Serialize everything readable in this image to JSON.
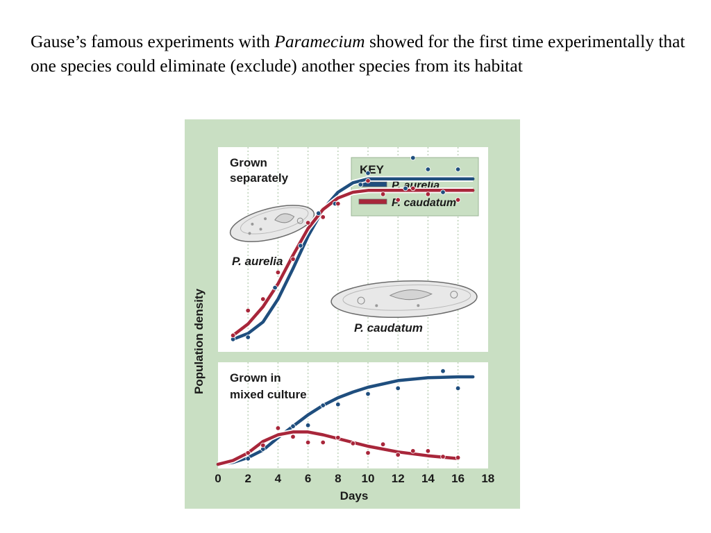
{
  "caption": {
    "before": "Gause’s famous experiments with ",
    "italic": "Paramecium",
    "after": " showed for the first time experimentally that one species could eliminate (exclude) another species from its habitat"
  },
  "colors": {
    "background": "#c9dfc3",
    "panel": "#ffffff",
    "aurelia": "#1f4e7e",
    "caudatum": "#a8263a",
    "key_bg": "#c9dfc3"
  },
  "figure": {
    "ylabel": "Population density",
    "xlabel": "Days",
    "x_ticks": [
      0,
      2,
      4,
      6,
      8,
      10,
      12,
      14,
      16,
      18
    ],
    "key": {
      "title": "KEY",
      "entries": [
        {
          "label": "P. aurelia",
          "series": "aurelia"
        },
        {
          "label": "P. caudatum",
          "series": "caudatum"
        }
      ]
    },
    "illustrations": [
      {
        "label": "P. aurelia",
        "icon": "paramecium-aurelia-icon"
      },
      {
        "label": "P. caudatum",
        "icon": "paramecium-caudatum-icon"
      }
    ]
  },
  "chart_data": [
    {
      "type": "line",
      "title": "Grown separately",
      "xlabel": "Days",
      "ylabel": "Population density",
      "xlim": [
        0,
        18
      ],
      "ylim": [
        0,
        1
      ],
      "series": [
        {
          "name": "P. aurelia",
          "color": "#1f4e7e",
          "curve": {
            "x": [
              1,
              2,
              3,
              4,
              5,
              6,
              7,
              8,
              9,
              10,
              12,
              14,
              16,
              17
            ],
            "y": [
              0.03,
              0.06,
              0.12,
              0.24,
              0.4,
              0.57,
              0.71,
              0.8,
              0.85,
              0.87,
              0.87,
              0.87,
              0.87,
              0.87
            ]
          },
          "points": {
            "x": [
              1,
              2,
              3.8,
              5.5,
              6.7,
              7.8,
              9.5,
              10,
              12.5,
              13,
              14,
              15,
              16
            ],
            "y": [
              0.03,
              0.04,
              0.3,
              0.52,
              0.69,
              0.74,
              0.84,
              0.9,
              0.82,
              0.98,
              0.92,
              0.8,
              0.92
            ]
          }
        },
        {
          "name": "P. caudatum",
          "color": "#a8263a",
          "curve": {
            "x": [
              1,
              2,
              3,
              4,
              5,
              6,
              7,
              8,
              9,
              10,
              12,
              14,
              16,
              17
            ],
            "y": [
              0.05,
              0.11,
              0.2,
              0.32,
              0.47,
              0.61,
              0.71,
              0.77,
              0.8,
              0.81,
              0.81,
              0.81,
              0.81,
              0.81
            ]
          },
          "points": {
            "x": [
              1,
              2,
              3,
              4,
              5,
              6,
              7,
              8,
              10,
              11,
              12,
              13,
              14,
              16
            ],
            "y": [
              0.05,
              0.18,
              0.24,
              0.38,
              0.45,
              0.64,
              0.67,
              0.74,
              0.86,
              0.79,
              0.76,
              0.82,
              0.79,
              0.76
            ]
          }
        }
      ]
    },
    {
      "type": "line",
      "title": "Grown in mixed culture",
      "xlabel": "Days",
      "ylabel": "Population density",
      "xlim": [
        0,
        18
      ],
      "ylim": [
        0,
        1
      ],
      "series": [
        {
          "name": "P. aurelia",
          "color": "#1f4e7e",
          "curve": {
            "x": [
              0,
              1,
              2,
              3,
              4,
              5,
              6,
              7,
              8,
              9,
              10,
              12,
              14,
              16,
              17
            ],
            "y": [
              0.0,
              0.02,
              0.07,
              0.15,
              0.28,
              0.4,
              0.52,
              0.62,
              0.7,
              0.76,
              0.81,
              0.88,
              0.91,
              0.92,
              0.92
            ]
          },
          "points": {
            "x": [
              2,
              3,
              5,
              6,
              7,
              8,
              10,
              12,
              15,
              16
            ],
            "y": [
              0.06,
              0.16,
              0.4,
              0.41,
              0.62,
              0.63,
              0.74,
              0.8,
              0.98,
              0.8
            ]
          }
        },
        {
          "name": "P. caudatum",
          "color": "#a8263a",
          "curve": {
            "x": [
              0,
              1,
              2,
              3,
              4,
              5,
              6,
              7,
              8,
              9,
              10,
              12,
              14,
              16
            ],
            "y": [
              0.0,
              0.04,
              0.12,
              0.24,
              0.31,
              0.34,
              0.34,
              0.31,
              0.27,
              0.23,
              0.19,
              0.13,
              0.09,
              0.06
            ]
          },
          "points": {
            "x": [
              2,
              3,
              4,
              5,
              6,
              7,
              8,
              9,
              10,
              11,
              12,
              13,
              14,
              15,
              16
            ],
            "y": [
              0.12,
              0.2,
              0.38,
              0.29,
              0.23,
              0.23,
              0.28,
              0.22,
              0.12,
              0.21,
              0.1,
              0.14,
              0.14,
              0.08,
              0.07
            ]
          }
        }
      ]
    }
  ]
}
